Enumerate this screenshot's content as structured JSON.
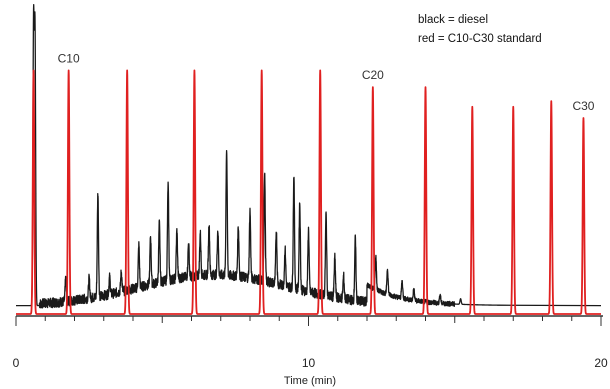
{
  "chart_data": {
    "type": "line",
    "title": "",
    "xlabel": "Time (min)",
    "ylabel": "",
    "xlim": [
      0,
      20
    ],
    "ylim": [
      0,
      1
    ],
    "x_ticks": [
      0,
      10,
      20
    ],
    "grid": false,
    "legend": {
      "placement": "top-right",
      "entries": [
        "black = diesel",
        "red = C10-C30 standard"
      ]
    },
    "colors": {
      "diesel": "#1a1a1a",
      "standard": "#e02020",
      "axis": "#333333"
    },
    "annotations": [
      {
        "text": "C10",
        "x": 1.8
      },
      {
        "text": "C20",
        "x": 12.2
      },
      {
        "text": "C30",
        "x": 19.4
      }
    ],
    "series": [
      {
        "id": "diesel",
        "color": "#1a1a1a",
        "baseline": 0.03,
        "peaks": [
          [
            0.6,
            1.0
          ],
          [
            0.65,
            0.97
          ],
          [
            1.7,
            0.08
          ],
          [
            2.5,
            0.07
          ],
          [
            2.8,
            0.37
          ],
          [
            3.2,
            0.06
          ],
          [
            3.6,
            0.07
          ],
          [
            4.2,
            0.15
          ],
          [
            4.6,
            0.17
          ],
          [
            4.9,
            0.21
          ],
          [
            5.2,
            0.34
          ],
          [
            5.5,
            0.17
          ],
          [
            5.9,
            0.12
          ],
          [
            6.3,
            0.15
          ],
          [
            6.6,
            0.18
          ],
          [
            6.9,
            0.16
          ],
          [
            7.2,
            0.45
          ],
          [
            7.6,
            0.18
          ],
          [
            8.0,
            0.24
          ],
          [
            8.5,
            0.39
          ],
          [
            8.9,
            0.19
          ],
          [
            9.2,
            0.13
          ],
          [
            9.5,
            0.4
          ],
          [
            9.7,
            0.31
          ],
          [
            10.0,
            0.22
          ],
          [
            10.6,
            0.29
          ],
          [
            10.9,
            0.14
          ],
          [
            11.2,
            0.08
          ],
          [
            11.6,
            0.22
          ],
          [
            12.3,
            0.12
          ],
          [
            12.7,
            0.09
          ],
          [
            13.2,
            0.06
          ],
          [
            13.6,
            0.04
          ],
          [
            14.5,
            0.03
          ],
          [
            15.2,
            0.02
          ]
        ]
      },
      {
        "id": "standard",
        "color": "#e02020",
        "baseline": 0.0,
        "peaks": [
          [
            0.6,
            0.87
          ],
          [
            1.8,
            0.87
          ],
          [
            3.8,
            0.87
          ],
          [
            6.1,
            0.87
          ],
          [
            8.4,
            0.87
          ],
          [
            10.4,
            0.87
          ],
          [
            12.2,
            0.81
          ],
          [
            14.0,
            0.81
          ],
          [
            15.6,
            0.74
          ],
          [
            17.0,
            0.74
          ],
          [
            18.3,
            0.76
          ],
          [
            19.4,
            0.7
          ]
        ]
      }
    ]
  }
}
